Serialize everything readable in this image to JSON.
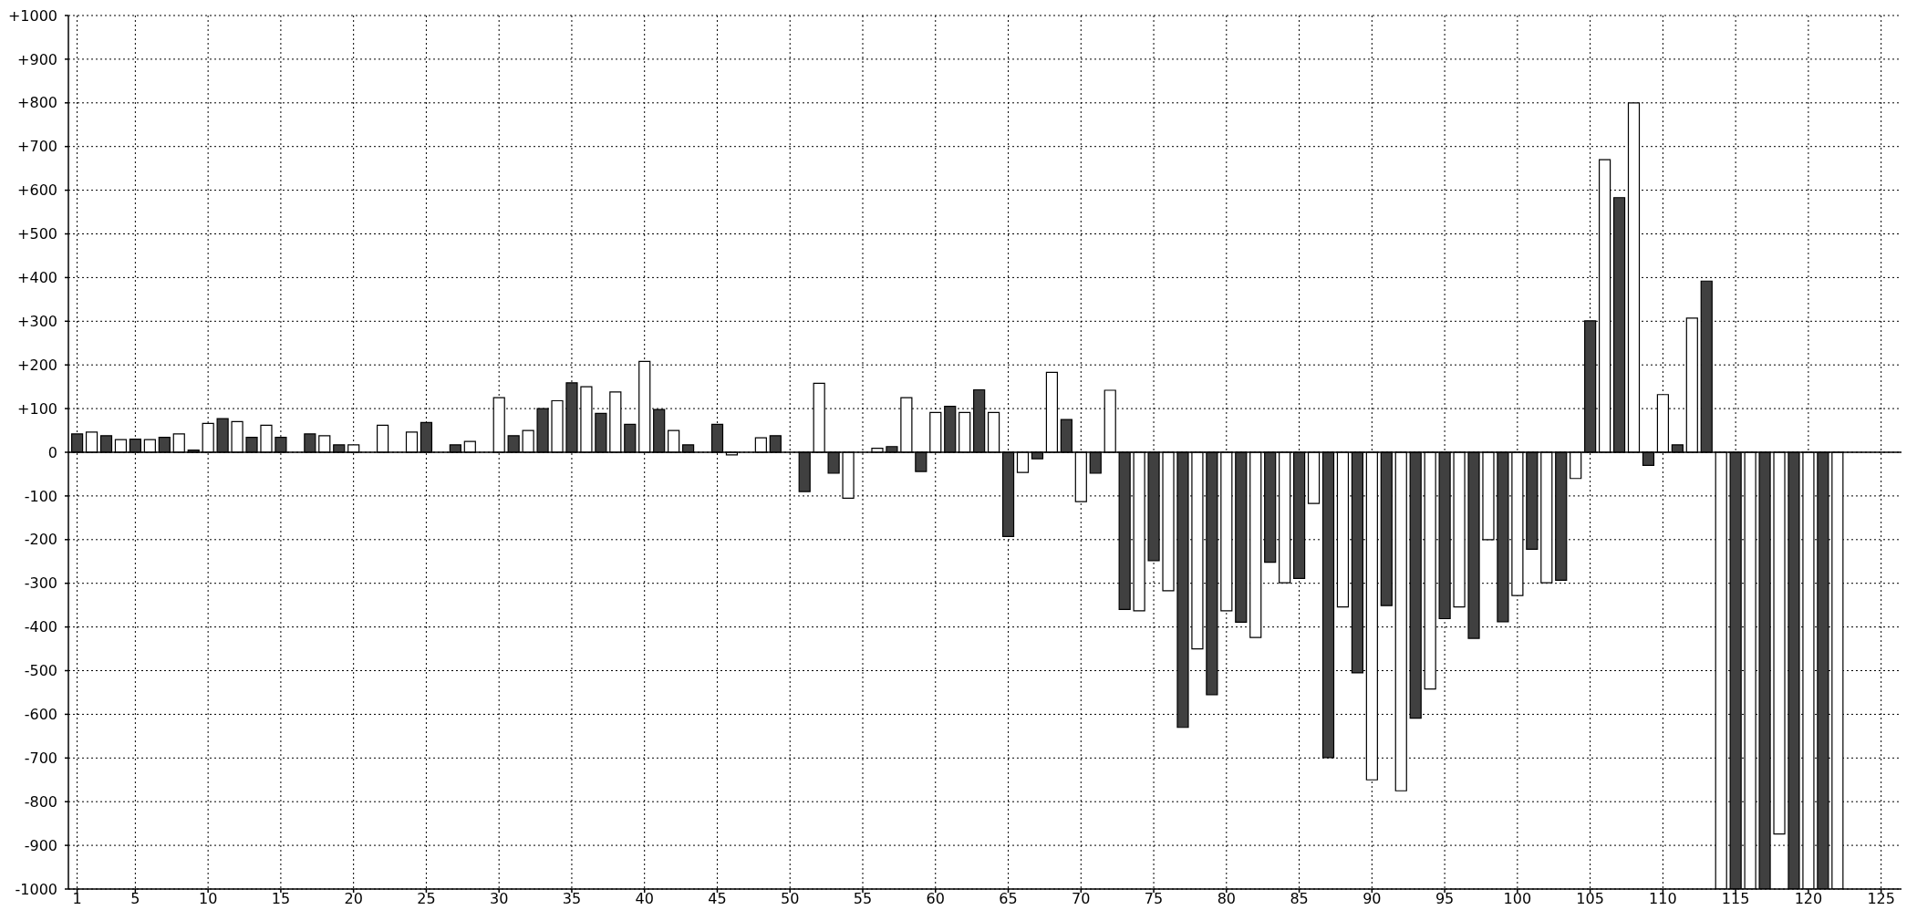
{
  "chart_data": {
    "type": "bar",
    "x": [
      1,
      2,
      3,
      4,
      5,
      6,
      7,
      8,
      9,
      10,
      11,
      12,
      13,
      14,
      15,
      17,
      18,
      19,
      20,
      22,
      24,
      25,
      27,
      28,
      30,
      31,
      32,
      33,
      34,
      35,
      36,
      37,
      38,
      39,
      40,
      41,
      42,
      43,
      45,
      46,
      48,
      49,
      51,
      52,
      53,
      54,
      56,
      57,
      58,
      59,
      60,
      61,
      62,
      63,
      64,
      65,
      66,
      67,
      68,
      69,
      70,
      71,
      72,
      73,
      74,
      75,
      76,
      77,
      78,
      79,
      80,
      81,
      82,
      83,
      84,
      85,
      86,
      87,
      88,
      89,
      90,
      91,
      92,
      93,
      94,
      95,
      96,
      97,
      98,
      99,
      100,
      101,
      102,
      103,
      104,
      105,
      106,
      107,
      108,
      109,
      110,
      111,
      112,
      113,
      114,
      115,
      116,
      117,
      118,
      119,
      120,
      121,
      122
    ],
    "values": [
      42,
      46,
      38,
      29,
      30,
      29,
      34,
      42,
      5,
      66,
      77,
      70,
      34,
      62,
      34,
      42,
      38,
      17,
      17,
      62,
      46,
      68,
      17,
      25,
      125,
      38,
      50,
      100,
      118,
      159,
      150,
      89,
      138,
      64,
      208,
      98,
      50,
      17,
      64,
      -6,
      33,
      38,
      -90,
      158,
      -48,
      -105,
      9,
      13,
      125,
      -44,
      91,
      105,
      91,
      143,
      91,
      -193,
      -46,
      -15,
      183,
      75,
      -113,
      -48,
      142,
      -360,
      -363,
      -248,
      -317,
      -630,
      -450,
      -555,
      -363,
      -389,
      -424,
      -252,
      -299,
      -289,
      -117,
      -699,
      -354,
      -505,
      -750,
      -351,
      -775,
      -609,
      -542,
      -381,
      -354,
      -426,
      -200,
      -388,
      -328,
      -222,
      -299,
      -293,
      -60,
      301,
      670,
      583,
      800,
      -30,
      132,
      17,
      307,
      392,
      -1000,
      -1000,
      -1000,
      -1000,
      -874,
      -1000,
      -1000,
      -1000,
      -1000
    ],
    "colors": [
      "#404040",
      "#ffffff",
      "#404040",
      "#ffffff",
      "#404040",
      "#ffffff",
      "#404040",
      "#ffffff",
      "#404040",
      "#ffffff",
      "#404040",
      "#ffffff",
      "#404040",
      "#ffffff",
      "#404040",
      "#404040",
      "#ffffff",
      "#404040",
      "#ffffff",
      "#ffffff",
      "#ffffff",
      "#404040",
      "#404040",
      "#ffffff",
      "#ffffff",
      "#404040",
      "#ffffff",
      "#404040",
      "#ffffff",
      "#404040",
      "#ffffff",
      "#404040",
      "#ffffff",
      "#404040",
      "#ffffff",
      "#404040",
      "#ffffff",
      "#404040",
      "#404040",
      "#ffffff",
      "#ffffff",
      "#404040",
      "#404040",
      "#ffffff",
      "#404040",
      "#ffffff",
      "#ffffff",
      "#404040",
      "#ffffff",
      "#404040",
      "#ffffff",
      "#404040",
      "#ffffff",
      "#404040",
      "#ffffff",
      "#404040",
      "#ffffff",
      "#404040",
      "#ffffff",
      "#404040",
      "#ffffff",
      "#404040",
      "#ffffff",
      "#404040",
      "#ffffff",
      "#404040",
      "#ffffff",
      "#404040",
      "#ffffff",
      "#404040",
      "#ffffff",
      "#404040",
      "#ffffff",
      "#404040",
      "#ffffff",
      "#404040",
      "#ffffff",
      "#404040",
      "#ffffff",
      "#404040",
      "#ffffff",
      "#404040",
      "#ffffff",
      "#404040",
      "#ffffff",
      "#404040",
      "#ffffff",
      "#404040",
      "#ffffff",
      "#404040",
      "#ffffff",
      "#404040",
      "#ffffff",
      "#404040",
      "#ffffff",
      "#404040",
      "#ffffff",
      "#404040",
      "#ffffff",
      "#404040",
      "#ffffff",
      "#404040",
      "#ffffff",
      "#404040",
      "#ffffff",
      "#404040",
      "#ffffff",
      "#404040",
      "#ffffff",
      "#404040",
      "#ffffff",
      "#404040",
      "#ffffff"
    ],
    "xlim": [
      0.4,
      126.4
    ],
    "xticks": [
      1,
      5,
      10,
      15,
      20,
      25,
      30,
      35,
      40,
      45,
      50,
      55,
      60,
      65,
      70,
      75,
      80,
      85,
      90,
      95,
      100,
      105,
      110,
      115,
      120,
      125
    ],
    "ylim": [
      -1000,
      1000
    ],
    "yticks": [
      {
        "value": 1000,
        "label": "+1000"
      },
      {
        "value": 900,
        "label": "+900"
      },
      {
        "value": 800,
        "label": "+800"
      },
      {
        "value": 700,
        "label": "+700"
      },
      {
        "value": 600,
        "label": "+600"
      },
      {
        "value": 500,
        "label": "+500"
      },
      {
        "value": 400,
        "label": "+400"
      },
      {
        "value": 300,
        "label": "+300"
      },
      {
        "value": 200,
        "label": "+200"
      },
      {
        "value": 100,
        "label": "+100"
      },
      0,
      -100,
      -200,
      -300,
      -400,
      -500,
      -600,
      -700,
      -800,
      -900,
      -1000
    ],
    "grid": true,
    "ref_lines": [
      {
        "axis": "y",
        "value": 0,
        "color": "#000000",
        "line_style": "solid"
      }
    ]
  }
}
